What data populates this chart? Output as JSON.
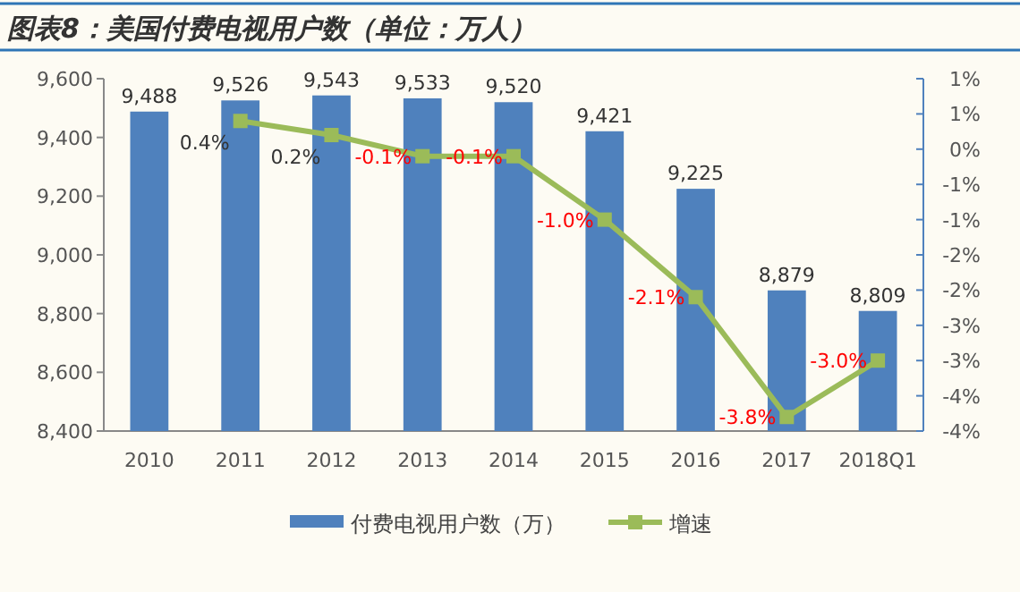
{
  "chart_data": {
    "type": "bar",
    "title": "图表8：美国付费电视用户数（单位：万人）",
    "categories": [
      "2010",
      "2011",
      "2012",
      "2013",
      "2014",
      "2015",
      "2016",
      "2017",
      "2018Q1"
    ],
    "series": [
      {
        "name": "付费电视用户数（万）",
        "color": "#4f81bd",
        "values": [
          9488,
          9526,
          9543,
          9533,
          9520,
          9421,
          9225,
          8879,
          8809
        ],
        "value_labels": [
          "9,488",
          "9,526",
          "9,543",
          "9,533",
          "9,520",
          "9,421",
          "9,225",
          "8,879",
          "8,809"
        ]
      },
      {
        "name": "增速",
        "type": "line",
        "axis": "y2",
        "color": "#9bbb59",
        "marker": "square",
        "values": [
          null,
          0.4,
          0.2,
          -0.1,
          -0.1,
          -1.0,
          -2.1,
          -3.8,
          -3.0
        ],
        "value_labels": [
          null,
          "0.4%",
          "0.2%",
          "-0.1%",
          "-0.1%",
          "-1.0%",
          "-2.1%",
          "-3.8%",
          "-3.0%"
        ]
      }
    ],
    "ylim": [
      8400,
      9600
    ],
    "yticks": [
      {
        "value": 8400,
        "label": "8,400"
      },
      {
        "value": 8600,
        "label": "8,600"
      },
      {
        "value": 8800,
        "label": "8,800"
      },
      {
        "value": 9000,
        "label": "9,000"
      },
      {
        "value": 9200,
        "label": "9,200"
      },
      {
        "value": 9400,
        "label": "9,400"
      },
      {
        "value": 9600,
        "label": "9,600"
      }
    ],
    "y2lim": [
      -4,
      1
    ],
    "y2ticks": [
      {
        "value": 1,
        "label": "1%"
      },
      {
        "value": 0.5,
        "label": "1%"
      },
      {
        "value": 0,
        "label": "0%"
      },
      {
        "value": -0.5,
        "label": "-1%"
      },
      {
        "value": -1,
        "label": "-1%"
      },
      {
        "value": -1.5,
        "label": "-2%"
      },
      {
        "value": -2,
        "label": "-2%"
      },
      {
        "value": -2.5,
        "label": "-3%"
      },
      {
        "value": -3,
        "label": "-3%"
      },
      {
        "value": -3.5,
        "label": "-4%"
      },
      {
        "value": -4,
        "label": "-4%"
      }
    ],
    "legend": "bottom",
    "grid": false
  }
}
